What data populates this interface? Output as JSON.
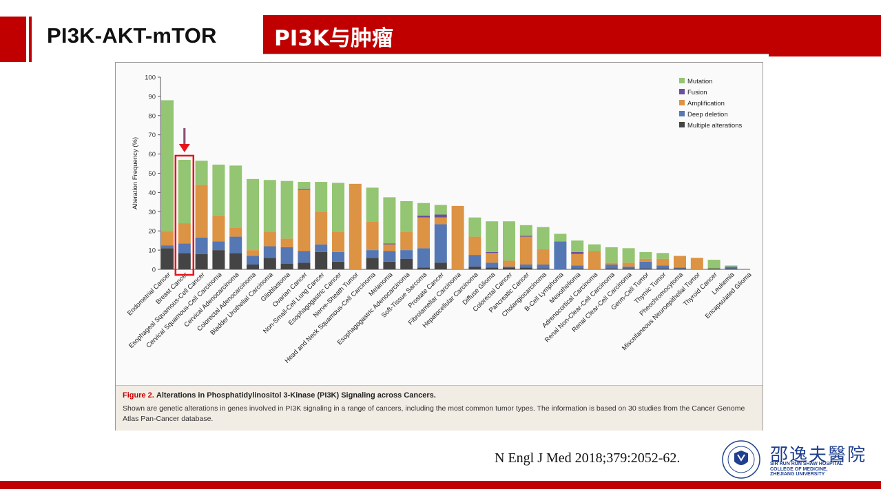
{
  "slide": {
    "main_title": "PI3K-AKT-mTOR",
    "banner_title": "PI3K与肿瘤",
    "citation": "N Engl J Med 2018;379:2052-62."
  },
  "caption": {
    "figure_label": "Figure 2.",
    "title": "Alterations in Phosphatidylinositol 3-Kinase (PI3K) Signaling across Cancers.",
    "body": "Shown are genetic alterations in genes involved in PI3K signaling in a range of cancers, including the most common tumor types. The information is based on 30 studies from the Cancer Genome Atlas Pan-Cancer database."
  },
  "logo": {
    "name_cn": "邵逸夫醫院",
    "name_en_lines": [
      "SIR RUN RUN SHAW HOSPITAL",
      "COLLEGE OF MEDICINE,",
      "ZHEJIANG UNIVERSITY"
    ]
  },
  "highlight": {
    "category_index": 1,
    "color": "#e8141b"
  },
  "colors": {
    "Mutation": "#93c572",
    "Fusion": "#6a4f9c",
    "Amplification": "#dc9344",
    "Deep deletion": "#5577b3",
    "Multiple alterations": "#444444",
    "brand_red": "#c00000"
  },
  "chart_data": {
    "type": "bar",
    "stacked": true,
    "title": "",
    "xlabel": "",
    "ylabel": "Alteration Frequency (%)",
    "ylim": [
      0,
      100
    ],
    "yticks": [
      0,
      10,
      20,
      30,
      40,
      50,
      60,
      70,
      80,
      90,
      100
    ],
    "legend_position": "top-right",
    "categories": [
      "Endometrial Cancer",
      "Breast Cancer",
      "Esophageal Squamous-Cell Cancer",
      "Cervical Squamous-Cell Carcinoma",
      "Cervical Adenocarcinoma",
      "Colorectal Adenocarcinoma",
      "Bladder Urothelial Carcinoma",
      "Glioblastoma",
      "Ovarian Cancer",
      "Non-Small-Cell Lung Cancer",
      "Esophagogastric Cancer",
      "Nerve-Sheath Tumor",
      "Head and Neck Squamous-Cell Carcinoma",
      "Melanoma",
      "Esophagogastric Adenocarcinoma",
      "Soft-Tissue Sarcoma",
      "Prostate Cancer",
      "Fibrolamellar Carcinoma",
      "Hepatocellular Carcinoma",
      "Diffuse Glioma",
      "Colorectal Cancer",
      "Pancreatic Cancer",
      "Cholangiocarcinoma",
      "B-Cell Lymphoma",
      "Mesothelioma",
      "Adrenocortical Carcinoma",
      "Renal Non-Clear-Cell Carcinoma",
      "Renal Clear-Cell Carcinoma",
      "Germ-Cell Tumor",
      "Thymic Tumor",
      "Pheochromocytoma",
      "Miscellaneous Neuroepithelial Tumor",
      "Thyroid Cancer",
      "Leukemia",
      "Encapsulated Glioma"
    ],
    "series": [
      {
        "name": "Multiple alterations",
        "values": [
          11,
          8.5,
          8,
          10,
          8.5,
          2.5,
          6,
          3,
          3.5,
          9,
          4,
          0,
          6,
          4,
          5.5,
          1,
          3.5,
          0,
          1.5,
          1,
          1,
          1,
          0.5,
          0,
          0.5,
          0,
          0.5,
          0.5,
          0.5,
          0.5,
          0.5,
          0,
          0.5,
          0.5,
          0
        ]
      },
      {
        "name": "Deep deletion",
        "values": [
          1.5,
          5,
          8.5,
          4.5,
          8.5,
          4.5,
          6,
          8.5,
          6,
          4,
          5,
          0,
          4,
          5.5,
          4.5,
          10,
          20,
          0,
          6,
          2.5,
          0.5,
          1.5,
          2,
          14.5,
          1.5,
          0,
          2,
          1,
          3.5,
          1.5,
          0.5,
          0,
          0,
          1,
          0
        ]
      },
      {
        "name": "Amplification",
        "values": [
          7.5,
          10.5,
          27.5,
          13.5,
          4.5,
          3,
          7.5,
          4.5,
          32,
          17,
          10.5,
          44.5,
          15,
          3.5,
          9.5,
          16,
          3.5,
          33,
          9.5,
          5,
          3,
          14.5,
          8,
          0,
          6,
          9.5,
          1,
          2,
          1.5,
          3.5,
          6,
          6,
          0,
          0,
          0
        ]
      },
      {
        "name": "Fusion",
        "values": [
          0,
          0,
          0,
          0,
          0,
          0,
          0,
          0,
          0.5,
          0,
          0,
          0,
          0,
          0.5,
          0,
          1,
          1.5,
          0,
          0,
          0.5,
          0,
          0.5,
          0,
          0,
          1,
          0,
          0,
          0,
          0,
          0,
          0,
          0,
          0,
          0,
          0
        ]
      },
      {
        "name": "Mutation",
        "values": [
          68,
          33,
          12.5,
          26.5,
          32.5,
          37,
          27,
          30,
          3.5,
          15.5,
          25.5,
          0,
          17.5,
          24,
          16,
          6.5,
          5,
          0,
          10,
          16,
          20.5,
          5.5,
          11.5,
          4,
          6,
          3.5,
          8,
          7.5,
          3.5,
          3,
          0,
          0,
          4.5,
          0.5,
          0
        ]
      }
    ],
    "legend_order": [
      "Mutation",
      "Fusion",
      "Amplification",
      "Deep deletion",
      "Multiple alterations"
    ]
  }
}
